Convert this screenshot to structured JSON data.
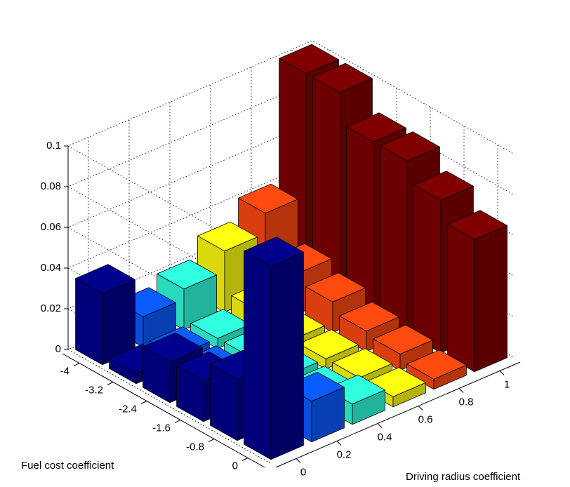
{
  "chart_data": {
    "type": "bar3d",
    "xlabel": "Fuel cost coefficient",
    "ylabel": "Driving radius coefficient",
    "x_categories": [
      "-4",
      "-3.2",
      "-2.4",
      "-1.6",
      "-0.8",
      "0"
    ],
    "y_categories": [
      "0",
      "0.2",
      "0.4",
      "0.6",
      "0.8",
      "1"
    ],
    "series": [
      {
        "color": "#00008f",
        "values": [
          0.035,
          0.005,
          0.02,
          0.02,
          0.03,
          0.095
        ]
      },
      {
        "color": "#0a5cff",
        "values": [
          0.015,
          0.005,
          0.005,
          0.005,
          0.005,
          0.02
        ]
      },
      {
        "color": "#30ffe0",
        "values": [
          0.02,
          0.005,
          0.005,
          0.005,
          0.005,
          0.01
        ]
      },
      {
        "color": "#ffff10",
        "values": [
          0.03,
          0.01,
          0.005,
          0.005,
          0.005,
          0.005
        ]
      },
      {
        "color": "#ff4a10",
        "values": [
          0.04,
          0.02,
          0.015,
          0.01,
          0.008,
          0.005
        ]
      },
      {
        "color": "#800000",
        "values": [
          0.1,
          0.1,
          0.085,
          0.085,
          0.075,
          0.065
        ]
      }
    ],
    "zlim": [
      0,
      0.1
    ],
    "zticks": [
      0,
      0.02,
      0.04,
      0.06,
      0.08,
      0.1
    ],
    "grid": true
  }
}
